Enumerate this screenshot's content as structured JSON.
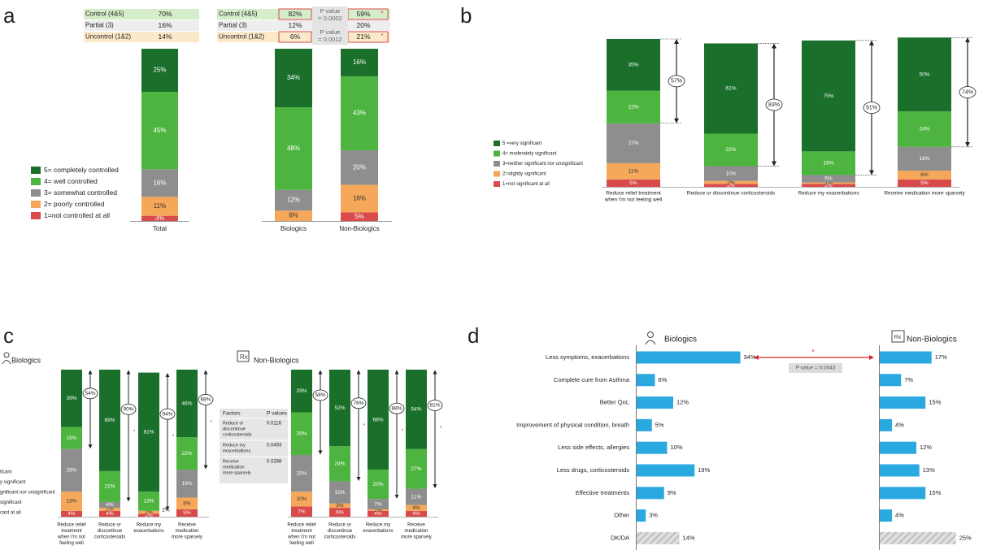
{
  "panels": {
    "a": "a",
    "b": "b",
    "c": "c",
    "d": "d"
  },
  "colors": {
    "c5": "#1a6f2b",
    "c4": "#4db53f",
    "c3": "#8e8e8e",
    "c2": "#f5a85a",
    "c1": "#d94a4a",
    "bar_blue": "#2aa9e0",
    "hatch": "#c9c9c9",
    "row_green": "#d5edc9",
    "row_grey": "#eeeeee",
    "row_orange": "#fce9c9",
    "box_red": "#d94a4a",
    "arrow_red": "#d9262b"
  },
  "chart_data": [
    {
      "id": "a",
      "type": "bar",
      "stacked": true,
      "categories": [
        "Total",
        "Biologics",
        "Non-Biologics"
      ],
      "series": [
        {
          "name": "1=not controlled at all",
          "values": [
            3,
            0,
            5
          ]
        },
        {
          "name": "2= poorly controlled",
          "values": [
            11,
            6,
            16
          ]
        },
        {
          "name": "3= somewhat controlled",
          "values": [
            16,
            12,
            20
          ]
        },
        {
          "name": "4= well controlled",
          "values": [
            45,
            48,
            43
          ]
        },
        {
          "name": "5= completely controlled",
          "values": [
            25,
            34,
            16
          ]
        }
      ],
      "data_labels": [
        [
          "3%",
          "11%",
          "16%",
          "45%",
          "25%"
        ],
        [
          "",
          "6%",
          "12%",
          "48%",
          "34%"
        ],
        [
          "5%",
          "16%",
          "20%",
          "43%",
          "16%"
        ]
      ],
      "summary_tables": [
        {
          "rows": [
            {
              "label": "Control (4&5)",
              "value": "70%"
            },
            {
              "label": "Partial  (3)",
              "value": "16%"
            },
            {
              "label": "Uncontrol (1&2)",
              "value": "14%"
            }
          ]
        },
        {
          "rows": [
            {
              "label": "Control (4&5)",
              "biologics": "82%",
              "non_biologics": "59%",
              "p": "P value = 0.0002",
              "star": "*"
            },
            {
              "label": "Partial  (3)",
              "biologics": "12%",
              "non_biologics": "20%",
              "p": "",
              "star": ""
            },
            {
              "label": "Uncontrol (1&2)",
              "biologics": "6%",
              "non_biologics": "21%",
              "p": "P value = 0.0012",
              "star": "*"
            }
          ]
        }
      ]
    },
    {
      "id": "b",
      "type": "bar",
      "stacked": true,
      "categories": [
        "Reduce relief treatment when I'm not feeling well",
        "Reduce or discontinue corticosteroids",
        "Reduce my exacerbations",
        "Receive medication more sparsely"
      ],
      "category_lines": [
        [
          "Reduce relief treatment",
          "when I'm not feeling well"
        ],
        [
          "Reduce or discontinue corticosteroids"
        ],
        [
          "Reduce my exacerbations"
        ],
        [
          "Receive medication more sparsely"
        ]
      ],
      "series": [
        {
          "name": "1=not significant at all",
          "values": [
            5,
            2,
            2,
            5
          ]
        },
        {
          "name": "2=slightly significant",
          "values": [
            11,
            2,
            1,
            6
          ]
        },
        {
          "name": "3=neither significant nor unsignificant",
          "values": [
            27,
            10,
            5,
            16
          ]
        },
        {
          "name": "4= moderately significant",
          "values": [
            22,
            22,
            16,
            24
          ]
        },
        {
          "name": "5 =very significant",
          "values": [
            35,
            61,
            75,
            50
          ]
        }
      ],
      "data_labels": [
        [
          "5%",
          "11%",
          "27%",
          "22%",
          "35%"
        ],
        [
          "2%",
          "2%",
          "10%",
          "22%",
          "61%"
        ],
        [
          "2%",
          "1%",
          "5%",
          "16%",
          "75%"
        ],
        [
          "5%",
          "6%",
          "16%",
          "24%",
          "50%"
        ]
      ],
      "brackets": [
        "57%",
        "83%",
        "91%",
        "74%"
      ]
    },
    {
      "id": "c",
      "type": "bar",
      "stacked": true,
      "groups": [
        {
          "name": "Biologics",
          "categories": [
            "Reduce relief treatment when I'm not feeling well",
            "Reduce or discontinue corticosteroids",
            "Reduce my exacerbations",
            "Receive medication more sparsely"
          ],
          "category_lines": [
            [
              "Reduce relief",
              "treatment",
              "when I'm not",
              "feeling well"
            ],
            [
              "Reduce or",
              "discontinue",
              "corticosteroids"
            ],
            [
              "Reduce my",
              "exacerbations"
            ],
            [
              "Receive",
              "medication",
              "more sparsely"
            ]
          ],
          "series": [
            {
              "name": "1",
              "values": [
                4,
                4,
                2,
                5
              ]
            },
            {
              "name": "2",
              "values": [
                13,
                2,
                2,
                8
              ]
            },
            {
              "name": "3",
              "values": [
                29,
                4,
                0,
                19
              ]
            },
            {
              "name": "4",
              "values": [
                15,
                21,
                13,
                22
              ]
            },
            {
              "name": "5",
              "values": [
                39,
                69,
                81,
                46
              ]
            }
          ],
          "data_labels": [
            [
              "4%",
              "13%",
              "29%",
              "15%",
              "39%"
            ],
            [
              "4%",
              "2%",
              "4%",
              "21%",
              "69%"
            ],
            [
              "2%",
              "2%",
              "",
              "13%",
              "81%"
            ],
            [
              "5%",
              "8%",
              "19%",
              "22%",
              "46%"
            ]
          ],
          "brackets": [
            "54%",
            "90%",
            "94%",
            "68%"
          ],
          "stars": [
            "",
            "*",
            "*",
            "*"
          ],
          "side_labels": [
            "",
            "",
            "2%",
            ""
          ]
        },
        {
          "name": "Non-Biologics",
          "categories": [
            "Reduce relief treatment when I'm not feeling well",
            "Reduce or discontinue corticosteroids",
            "Reduce my exacerbations",
            "Receive medication more sparsely"
          ],
          "category_lines": [
            [
              "Reduce relief",
              "treatment",
              "when I'm not",
              "feeling well"
            ],
            [
              "Reduce or",
              "discontinue",
              "corticosteroids"
            ],
            [
              "Reduce my",
              "exacerbations"
            ],
            [
              "Receive",
              "medication",
              "more sparsely"
            ]
          ],
          "series": [
            {
              "name": "1",
              "values": [
                7,
                6,
                4,
                4
              ]
            },
            {
              "name": "2",
              "values": [
                10,
                3,
                1,
                4
              ]
            },
            {
              "name": "3",
              "values": [
                25,
                15,
                7,
                11
              ]
            },
            {
              "name": "4",
              "values": [
                29,
                24,
                20,
                27
              ]
            },
            {
              "name": "5",
              "values": [
                29,
                52,
                68,
                54
              ]
            }
          ],
          "data_labels": [
            [
              "7%",
              "10%",
              "25%",
              "29%",
              "29%"
            ],
            [
              "6%",
              "3%",
              "15%",
              "24%",
              "52%"
            ],
            [
              "4%",
              "1%",
              "7%",
              "20%",
              "68%"
            ],
            [
              "4%",
              "4%",
              "11%",
              "27%",
              "54%"
            ]
          ],
          "brackets": [
            "58%",
            "76%",
            "88%",
            "81%"
          ],
          "stars": [
            "",
            "*",
            "*",
            "*"
          ]
        }
      ],
      "legend_visible": [
        "ficant",
        "y significant",
        "gnificant nor unsignificant",
        "significant",
        "cant at all"
      ],
      "pvalue_table": {
        "headers": [
          "Factors",
          "P values"
        ],
        "rows": [
          {
            "factor": [
              "Reduce or",
              "discontinue",
              "corticosteroids"
            ],
            "p": "0.0116"
          },
          {
            "factor": [
              "Reduce my",
              "exacerbations"
            ],
            "p": "0.0493"
          },
          {
            "factor": [
              "Receive",
              "medication",
              "more sparsely"
            ],
            "p": "0.0288"
          }
        ]
      }
    },
    {
      "id": "d",
      "type": "bar",
      "orientation": "horizontal",
      "categories": [
        "Less symptoms, exacerbations",
        "Complete cure from Asthma",
        "Better QoL",
        "Improvement of physical condition, breath",
        "Less side effects, allergies",
        "Less drugs, corticosteroids",
        "Effective treatments",
        "Other",
        "DK/DA"
      ],
      "series": [
        {
          "name": "Biologics",
          "values": [
            34,
            6,
            12,
            5,
            10,
            19,
            9,
            3,
            14
          ]
        },
        {
          "name": "Non-Biologics",
          "values": [
            17,
            7,
            15,
            4,
            12,
            13,
            15,
            4,
            25
          ]
        }
      ],
      "hatched_category": "DK/DA",
      "annotation": {
        "star": "*",
        "p": "P value = 0.0043"
      }
    }
  ]
}
